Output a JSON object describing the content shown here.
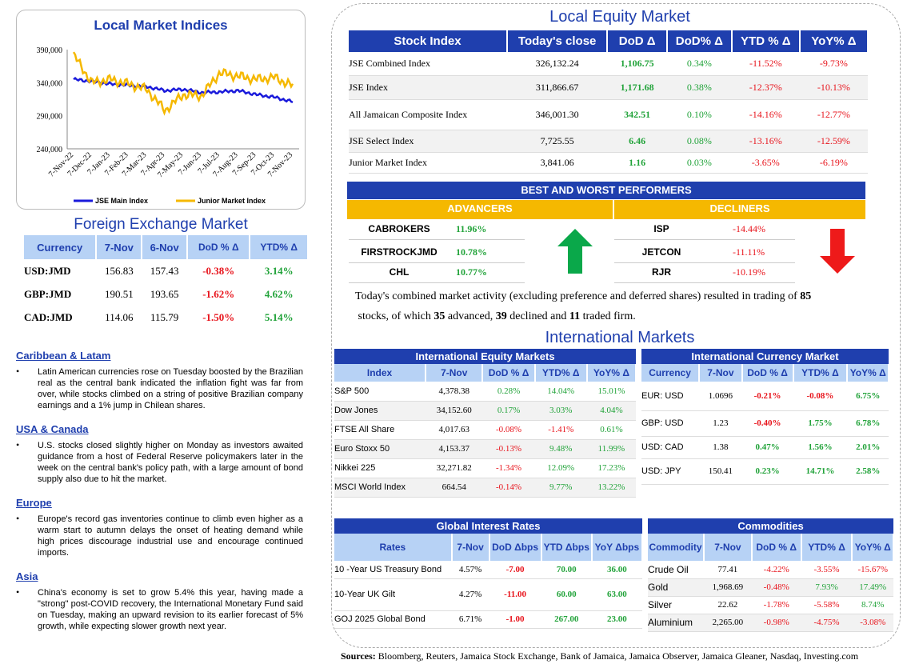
{
  "indices_chart": {
    "title": "Local Market Indices",
    "yticks": [
      "390,000",
      "340,000",
      "290,000",
      "240,000"
    ],
    "xticks": [
      "7-Nov-22",
      "7-Dec-22",
      "7-Jan-23",
      "7-Feb-23",
      "7-Mar-23",
      "7-Apr-23",
      "7-May-23",
      "7-Jun-23",
      "7-Jul-23",
      "7-Aug-23",
      "7-Sep-23",
      "7-Oct-23",
      "7-Nov-23"
    ],
    "legend": [
      "JSE Main Index",
      "Junior Market Index"
    ]
  },
  "chart_data": {
    "type": "line",
    "title": "Local Market Indices",
    "ylim": [
      240000,
      390000
    ],
    "categories": [
      "7-Nov-22",
      "7-Dec-22",
      "7-Jan-23",
      "7-Feb-23",
      "7-Mar-23",
      "7-Apr-23",
      "7-May-23",
      "7-Jun-23",
      "7-Jul-23",
      "7-Aug-23",
      "7-Sep-23",
      "7-Oct-23",
      "7-Nov-23"
    ],
    "series": [
      {
        "name": "JSE Main Index",
        "color": "#1a1adb",
        "values": [
          345000,
          342000,
          338000,
          336000,
          334000,
          328000,
          330000,
          325000,
          326000,
          328000,
          322000,
          318000,
          311000
        ]
      },
      {
        "name": "Junior Market Index",
        "color": "#f5b800",
        "values": [
          382000,
          340000,
          345000,
          338000,
          330000,
          298000,
          322000,
          320000,
          355000,
          350000,
          345000,
          348000,
          335000
        ]
      }
    ]
  },
  "fx": {
    "title": "Foreign Exchange Market",
    "headers": [
      "Currency",
      "7-Nov",
      "6-Nov",
      "DoD % Δ",
      "YTD% Δ"
    ],
    "rows": [
      [
        "USD:JMD",
        "156.83",
        "157.43",
        "-0.38%",
        "3.14%"
      ],
      [
        "GBP:JMD",
        "190.51",
        "193.65",
        "-1.62%",
        "4.62%"
      ],
      [
        "CAD:JMD",
        "114.06",
        "115.79",
        "-1.50%",
        "5.14%"
      ]
    ]
  },
  "news": [
    {
      "head": "Caribbean & Latam",
      "text": "Latin American currencies rose on Tuesday boosted by the Brazilian real as the central bank indicated the inflation fight was far from over, while stocks climbed on a string of positive Brazilian company earnings and a 1% jump in Chilean shares."
    },
    {
      "head": "USA & Canada",
      "text": "U.S. stocks closed slightly higher on Monday as investors awaited guidance from a host of Federal Reserve policymakers later in the week on the central bank's policy path, with a large amount of bond supply also due to hit the market."
    },
    {
      "head": "Europe",
      "text": "Europe's record gas inventories continue to climb even higher as a warm start to autumn delays the onset of heating demand while high prices discourage industrial use and encourage continued imports."
    },
    {
      "head": "Asia",
      "text": "China's economy is set to grow 5.4% this year, having made a \"strong\" post-COVID recovery, the International Monetary Fund said on Tuesday, making an upward revision to its earlier forecast of 5% growth, while expecting slower growth next year."
    }
  ],
  "equity": {
    "title": "Local Equity Market",
    "headers": [
      "Stock Index",
      "Today's close",
      "DoD  Δ",
      "DoD% Δ",
      "YTD % Δ",
      "YoY% Δ"
    ],
    "rows": [
      [
        "JSE Combined Index",
        "326,132.24",
        "1,106.75",
        "0.34%",
        "-11.52%",
        "-9.73%"
      ],
      [
        "JSE Index",
        "311,866.67",
        "1,171.68",
        "0.38%",
        "-12.37%",
        "-10.13%"
      ],
      [
        "All Jamaican Composite Index",
        "346,001.30",
        "342.51",
        "0.10%",
        "-14.16%",
        "-12.77%"
      ],
      [
        "JSE Select Index",
        "7,725.55",
        "6.46",
        "0.08%",
        "-13.16%",
        "-12.59%"
      ],
      [
        "Junior Market Index",
        "3,841.06",
        "1.16",
        "0.03%",
        "-3.65%",
        "-6.19%"
      ]
    ]
  },
  "performers": {
    "title": "BEST AND WORST PERFORMERS",
    "adv_label": "ADVANCERS",
    "dec_label": "DECLINERS",
    "advancers": [
      [
        "CABROKERS",
        "11.96%"
      ],
      [
        "FIRSTROCKJMD",
        "10.78%"
      ],
      [
        "CHL",
        "10.77%"
      ]
    ],
    "decliners": [
      [
        "ISP",
        "-14.44%"
      ],
      [
        "JETCON",
        "-11.11%"
      ],
      [
        "RJR",
        "-10.19%"
      ]
    ]
  },
  "summary": {
    "p1": "Today's combined market activity (excluding preference and deferred shares) resulted in trading of ",
    "n1": "85",
    "p2": "stocks, of which ",
    "n2": "35",
    "p3": " advanced, ",
    "n3": "39",
    "p4": " declined and ",
    "n4": "11",
    "p5": " traded firm."
  },
  "intl": {
    "title": "International Markets",
    "equity_title": "International Equity Markets",
    "equity_headers": [
      "Index",
      "7-Nov",
      "DoD % Δ",
      "YTD% Δ",
      "YoY% Δ"
    ],
    "equity_rows": [
      [
        "S&P 500",
        "4,378.38",
        "0.28%",
        "14.04%",
        "15.01%"
      ],
      [
        "Dow Jones",
        "34,152.60",
        "0.17%",
        "3.03%",
        "4.04%"
      ],
      [
        "FTSE All Share",
        "4,017.63",
        "-0.08%",
        "-1.41%",
        "0.61%"
      ],
      [
        "Euro Stoxx 50",
        "4,153.37",
        "-0.13%",
        "9.48%",
        "11.99%"
      ],
      [
        "Nikkei 225",
        "32,271.82",
        "-1.34%",
        "12.09%",
        "17.23%"
      ],
      [
        "MSCI World Index",
        "664.54",
        "-0.14%",
        "9.77%",
        "13.22%"
      ]
    ],
    "currency_title": "International Currency Market",
    "currency_headers": [
      "Currency",
      "7-Nov",
      "DoD % Δ",
      "YTD% Δ",
      "YoY% Δ"
    ],
    "currency_rows": [
      [
        "EUR: USD",
        "1.0696",
        "-0.21%",
        "-0.08%",
        "6.75%"
      ],
      [
        "GBP: USD",
        "1.23",
        "-0.40%",
        "1.75%",
        "6.78%"
      ],
      [
        "USD: CAD",
        "1.38",
        "0.47%",
        "1.56%",
        "2.01%"
      ],
      [
        "USD: JPY",
        "150.41",
        "0.23%",
        "14.71%",
        "2.58%"
      ]
    ],
    "rates_title": "Global Interest Rates",
    "rates_headers": [
      "Rates",
      "7-Nov",
      "DoD Δbps",
      "YTD Δbps",
      "YoY Δbps"
    ],
    "rates_rows": [
      [
        "10 -Year US Treasury Bond",
        "4.57%",
        "-7.00",
        "70.00",
        "36.00"
      ],
      [
        "10-Year UK Gilt",
        "4.27%",
        "-11.00",
        "60.00",
        "63.00"
      ],
      [
        "GOJ 2025 Global Bond",
        "6.71%",
        "-1.00",
        "267.00",
        "23.00"
      ]
    ],
    "comm_title": "Commodities",
    "comm_headers": [
      "Commodity",
      "7-Nov",
      "DoD % Δ",
      "YTD% Δ",
      "YoY% Δ"
    ],
    "comm_rows": [
      [
        "Crude Oil",
        "77.41",
        "-4.22%",
        "-3.55%",
        "-15.67%"
      ],
      [
        "Gold",
        "1,968.69",
        "-0.48%",
        "7.93%",
        "17.49%"
      ],
      [
        "Silver",
        "22.62",
        "-1.78%",
        "-5.58%",
        "8.74%"
      ],
      [
        "Aluminium",
        "2,265.00",
        "-0.98%",
        "-4.75%",
        "-3.08%"
      ]
    ]
  },
  "sources": {
    "label": "Sources:",
    "text": " Bloomberg, Reuters, Jamaica Stock Exchange, Bank of Jamaica, Jamaica Observer, Jamaica Gleaner, Nasdaq, Investing.com"
  },
  "colors": {
    "navy": "#1f3fae",
    "lightblue": "#b7d2f5",
    "gold": "#f5b800",
    "green": "#22a33a",
    "red": "#e8141c"
  }
}
